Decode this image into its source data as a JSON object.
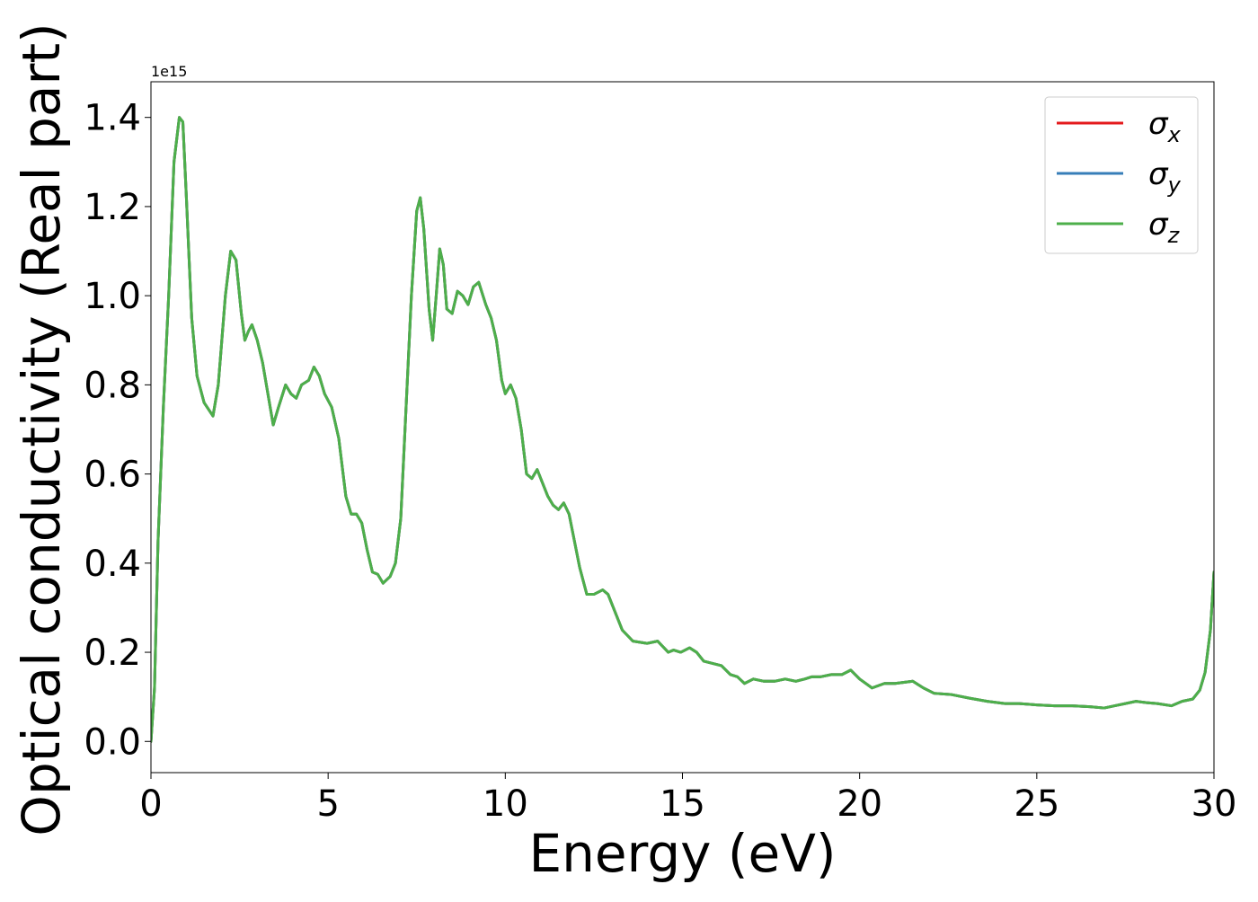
{
  "chart_data": {
    "type": "line",
    "xlabel": "Energy (eV)",
    "ylabel": "Optical conductivity (Real part)",
    "y_offset_label": "1e15",
    "y_scale_factor": 1000000000000000.0,
    "xlim": [
      0,
      30
    ],
    "ylim": [
      -0.07,
      1.48
    ],
    "x_ticks": [
      0,
      5,
      10,
      15,
      20,
      25,
      30
    ],
    "x_tick_labels": [
      "0",
      "5",
      "10",
      "15",
      "20",
      "25",
      "30"
    ],
    "y_ticks": [
      0.0,
      0.2,
      0.4,
      0.6,
      0.8,
      1.0,
      1.2,
      1.4
    ],
    "y_tick_labels": [
      "0.0",
      "0.2",
      "0.4",
      "0.6",
      "0.8",
      "1.0",
      "1.2",
      "1.4"
    ],
    "grid": false,
    "legend_position": "top-right",
    "x": [
      0,
      0.1,
      0.2,
      0.35,
      0.5,
      0.65,
      0.8,
      0.9,
      1.0,
      1.15,
      1.3,
      1.5,
      1.75,
      1.9,
      2.1,
      2.25,
      2.4,
      2.55,
      2.65,
      2.75,
      2.85,
      3.0,
      3.15,
      3.3,
      3.45,
      3.6,
      3.8,
      3.95,
      4.1,
      4.25,
      4.45,
      4.6,
      4.75,
      4.9,
      5.1,
      5.3,
      5.5,
      5.65,
      5.8,
      5.95,
      6.1,
      6.25,
      6.4,
      6.55,
      6.75,
      6.9,
      7.05,
      7.2,
      7.35,
      7.5,
      7.6,
      7.7,
      7.85,
      7.95,
      8.05,
      8.15,
      8.25,
      8.35,
      8.5,
      8.65,
      8.8,
      8.95,
      9.1,
      9.25,
      9.45,
      9.6,
      9.75,
      9.9,
      10.0,
      10.15,
      10.3,
      10.45,
      10.6,
      10.75,
      10.9,
      11.05,
      11.2,
      11.35,
      11.5,
      11.65,
      11.8,
      11.95,
      12.1,
      12.3,
      12.5,
      12.75,
      12.9,
      13.05,
      13.3,
      13.6,
      14.0,
      14.3,
      14.6,
      14.75,
      14.95,
      15.2,
      15.4,
      15.6,
      15.85,
      16.1,
      16.35,
      16.55,
      16.75,
      17.0,
      17.3,
      17.6,
      17.9,
      18.2,
      18.45,
      18.65,
      18.9,
      19.2,
      19.5,
      19.75,
      20.0,
      20.35,
      20.7,
      21.0,
      21.5,
      21.8,
      22.1,
      22.6,
      23.1,
      23.6,
      24.1,
      24.5,
      25.0,
      25.5,
      26.0,
      26.5,
      26.9,
      27.2,
      27.5,
      27.8,
      28.1,
      28.4,
      28.8,
      29.1,
      29.4,
      29.6,
      29.75,
      29.9,
      30.0
    ],
    "series": [
      {
        "name": "σx",
        "label_symbol": "σ",
        "label_sub": "x",
        "color": "#e41a1c",
        "values": [
          0.0,
          0.12,
          0.45,
          0.75,
          1.0,
          1.3,
          1.4,
          1.39,
          1.22,
          0.95,
          0.82,
          0.76,
          0.73,
          0.8,
          1.0,
          1.1,
          1.08,
          0.96,
          0.9,
          0.92,
          0.935,
          0.9,
          0.85,
          0.78,
          0.71,
          0.75,
          0.8,
          0.78,
          0.77,
          0.8,
          0.81,
          0.84,
          0.82,
          0.78,
          0.75,
          0.68,
          0.55,
          0.51,
          0.51,
          0.49,
          0.43,
          0.38,
          0.375,
          0.355,
          0.37,
          0.4,
          0.5,
          0.75,
          1.0,
          1.19,
          1.22,
          1.15,
          0.97,
          0.9,
          1.0,
          1.105,
          1.07,
          0.97,
          0.96,
          1.01,
          1.0,
          0.98,
          1.02,
          1.03,
          0.98,
          0.95,
          0.9,
          0.81,
          0.78,
          0.8,
          0.77,
          0.7,
          0.6,
          0.59,
          0.61,
          0.58,
          0.55,
          0.53,
          0.52,
          0.535,
          0.51,
          0.45,
          0.39,
          0.33,
          0.33,
          0.34,
          0.33,
          0.3,
          0.25,
          0.225,
          0.22,
          0.225,
          0.2,
          0.205,
          0.2,
          0.21,
          0.2,
          0.18,
          0.175,
          0.17,
          0.15,
          0.145,
          0.13,
          0.14,
          0.135,
          0.135,
          0.14,
          0.135,
          0.14,
          0.145,
          0.145,
          0.15,
          0.15,
          0.16,
          0.14,
          0.12,
          0.13,
          0.13,
          0.135,
          0.12,
          0.108,
          0.105,
          0.097,
          0.09,
          0.085,
          0.085,
          0.082,
          0.08,
          0.08,
          0.078,
          0.075,
          0.08,
          0.085,
          0.09,
          0.087,
          0.085,
          0.08,
          0.09,
          0.095,
          0.115,
          0.155,
          0.25,
          0.38
        ]
      },
      {
        "name": "σy",
        "label_symbol": "σ",
        "label_sub": "y",
        "color": "#377eb8",
        "values": [
          0.0,
          0.12,
          0.45,
          0.75,
          1.0,
          1.3,
          1.4,
          1.39,
          1.22,
          0.95,
          0.82,
          0.76,
          0.73,
          0.8,
          1.0,
          1.1,
          1.08,
          0.96,
          0.9,
          0.92,
          0.935,
          0.9,
          0.85,
          0.78,
          0.71,
          0.75,
          0.8,
          0.78,
          0.77,
          0.8,
          0.81,
          0.84,
          0.82,
          0.78,
          0.75,
          0.68,
          0.55,
          0.51,
          0.51,
          0.49,
          0.43,
          0.38,
          0.375,
          0.355,
          0.37,
          0.4,
          0.5,
          0.75,
          1.0,
          1.19,
          1.22,
          1.15,
          0.97,
          0.9,
          1.0,
          1.105,
          1.07,
          0.97,
          0.96,
          1.01,
          1.0,
          0.98,
          1.02,
          1.03,
          0.98,
          0.95,
          0.9,
          0.81,
          0.78,
          0.8,
          0.77,
          0.7,
          0.6,
          0.59,
          0.61,
          0.58,
          0.55,
          0.53,
          0.52,
          0.535,
          0.51,
          0.45,
          0.39,
          0.33,
          0.33,
          0.34,
          0.33,
          0.3,
          0.25,
          0.225,
          0.22,
          0.225,
          0.2,
          0.205,
          0.2,
          0.21,
          0.2,
          0.18,
          0.175,
          0.17,
          0.15,
          0.145,
          0.13,
          0.14,
          0.135,
          0.135,
          0.14,
          0.135,
          0.14,
          0.145,
          0.145,
          0.15,
          0.15,
          0.16,
          0.14,
          0.12,
          0.13,
          0.13,
          0.135,
          0.12,
          0.108,
          0.105,
          0.097,
          0.09,
          0.085,
          0.085,
          0.082,
          0.08,
          0.08,
          0.078,
          0.075,
          0.08,
          0.085,
          0.09,
          0.087,
          0.085,
          0.08,
          0.09,
          0.095,
          0.115,
          0.155,
          0.25,
          0.38
        ]
      },
      {
        "name": "σz",
        "label_symbol": "σ",
        "label_sub": "z",
        "color": "#4daf4a",
        "values": [
          0.0,
          0.12,
          0.45,
          0.75,
          1.0,
          1.3,
          1.4,
          1.39,
          1.22,
          0.95,
          0.82,
          0.76,
          0.73,
          0.8,
          1.0,
          1.1,
          1.08,
          0.96,
          0.9,
          0.92,
          0.935,
          0.9,
          0.85,
          0.78,
          0.71,
          0.75,
          0.8,
          0.78,
          0.77,
          0.8,
          0.81,
          0.84,
          0.82,
          0.78,
          0.75,
          0.68,
          0.55,
          0.51,
          0.51,
          0.49,
          0.43,
          0.38,
          0.375,
          0.355,
          0.37,
          0.4,
          0.5,
          0.75,
          1.0,
          1.19,
          1.22,
          1.15,
          0.97,
          0.9,
          1.0,
          1.105,
          1.07,
          0.97,
          0.96,
          1.01,
          1.0,
          0.98,
          1.02,
          1.03,
          0.98,
          0.95,
          0.9,
          0.81,
          0.78,
          0.8,
          0.77,
          0.7,
          0.6,
          0.59,
          0.61,
          0.58,
          0.55,
          0.53,
          0.52,
          0.535,
          0.51,
          0.45,
          0.39,
          0.33,
          0.33,
          0.34,
          0.33,
          0.3,
          0.25,
          0.225,
          0.22,
          0.225,
          0.2,
          0.205,
          0.2,
          0.21,
          0.2,
          0.18,
          0.175,
          0.17,
          0.15,
          0.145,
          0.13,
          0.14,
          0.135,
          0.135,
          0.14,
          0.135,
          0.14,
          0.145,
          0.145,
          0.15,
          0.15,
          0.16,
          0.14,
          0.12,
          0.13,
          0.13,
          0.135,
          0.12,
          0.108,
          0.105,
          0.097,
          0.09,
          0.085,
          0.085,
          0.082,
          0.08,
          0.08,
          0.078,
          0.075,
          0.08,
          0.085,
          0.09,
          0.087,
          0.085,
          0.08,
          0.09,
          0.095,
          0.115,
          0.155,
          0.25,
          0.38
        ]
      }
    ]
  }
}
